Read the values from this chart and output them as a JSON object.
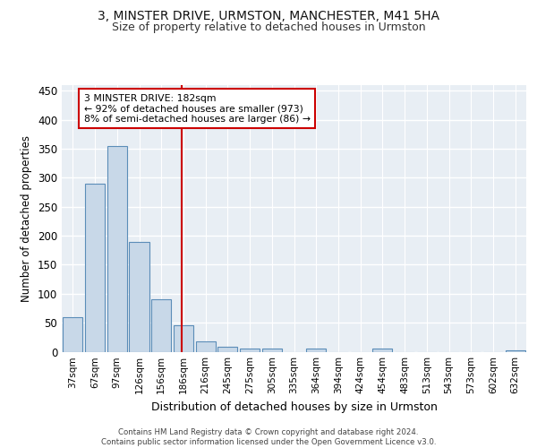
{
  "title1": "3, MINSTER DRIVE, URMSTON, MANCHESTER, M41 5HA",
  "title2": "Size of property relative to detached houses in Urmston",
  "xlabel": "Distribution of detached houses by size in Urmston",
  "ylabel": "Number of detached properties",
  "categories": [
    "37sqm",
    "67sqm",
    "97sqm",
    "126sqm",
    "156sqm",
    "186sqm",
    "216sqm",
    "245sqm",
    "275sqm",
    "305sqm",
    "335sqm",
    "364sqm",
    "394sqm",
    "424sqm",
    "454sqm",
    "483sqm",
    "513sqm",
    "543sqm",
    "573sqm",
    "602sqm",
    "632sqm"
  ],
  "values": [
    60,
    290,
    355,
    190,
    90,
    45,
    18,
    8,
    5,
    5,
    0,
    5,
    0,
    0,
    5,
    0,
    0,
    0,
    0,
    0,
    3
  ],
  "bar_color": "#c8d8e8",
  "bar_edge_color": "#5b8db8",
  "vline_x_idx": 5,
  "vline_color": "#cc0000",
  "annotation_text": "3 MINSTER DRIVE: 182sqm\n← 92% of detached houses are smaller (973)\n8% of semi-detached houses are larger (86) →",
  "annotation_box_color": "#ffffff",
  "annotation_box_edge": "#cc0000",
  "ylim": [
    0,
    460
  ],
  "yticks": [
    0,
    50,
    100,
    150,
    200,
    250,
    300,
    350,
    400,
    450
  ],
  "bg_color": "#e8eef4",
  "grid_color": "#ffffff",
  "footer": "Contains HM Land Registry data © Crown copyright and database right 2024.\nContains public sector information licensed under the Open Government Licence v3.0."
}
